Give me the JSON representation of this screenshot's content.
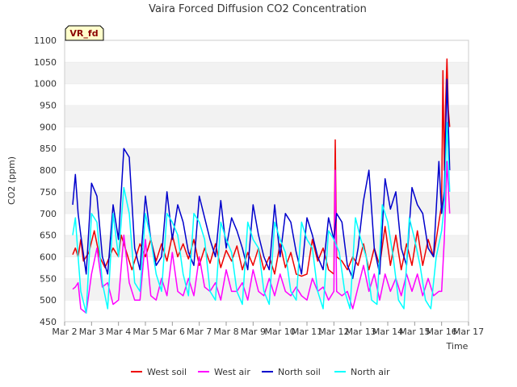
{
  "chart_data": {
    "type": "line",
    "title": "Vaira Forced Diffusion CO2 Concentration",
    "badge": "VR_fd",
    "xlabel": "Time",
    "ylabel": "CO2 (ppm)",
    "ylim": [
      450,
      1100
    ],
    "yticks": [
      450,
      500,
      550,
      600,
      650,
      700,
      750,
      800,
      850,
      900,
      950,
      1000,
      1050,
      1100
    ],
    "xlim": [
      2,
      17
    ],
    "xticks": [
      {
        "v": 2,
        "label": "Mar 2"
      },
      {
        "v": 3,
        "label": "Mar 3"
      },
      {
        "v": 4,
        "label": "Mar 4"
      },
      {
        "v": 5,
        "label": "Mar 5"
      },
      {
        "v": 6,
        "label": "Mar 6"
      },
      {
        "v": 7,
        "label": "Mar 7"
      },
      {
        "v": 8,
        "label": "Mar 8"
      },
      {
        "v": 9,
        "label": "Mar 9"
      },
      {
        "v": 10,
        "label": "Mar 10"
      },
      {
        "v": 11,
        "label": "Mar 11"
      },
      {
        "v": 12,
        "label": "Mar 12"
      },
      {
        "v": 13,
        "label": "Mar 13"
      },
      {
        "v": 14,
        "label": "Mar 14"
      },
      {
        "v": 15,
        "label": "Mar 15"
      },
      {
        "v": 16,
        "label": "Mar 16"
      },
      {
        "v": 17,
        "label": "Mar 17"
      }
    ],
    "grid": "horizontal bands",
    "legend": "bottom",
    "series": [
      {
        "name": "West soil",
        "color": "#ee0000",
        "x": [
          2.3,
          2.4,
          2.5,
          2.6,
          2.7,
          2.9,
          3.1,
          3.3,
          3.5,
          3.8,
          4.0,
          4.1,
          4.3,
          4.5,
          4.8,
          5.0,
          5.2,
          5.4,
          5.6,
          5.8,
          6.0,
          6.2,
          6.4,
          6.6,
          6.8,
          7.0,
          7.2,
          7.4,
          7.6,
          7.8,
          8.0,
          8.2,
          8.4,
          8.6,
          8.8,
          9.0,
          9.2,
          9.4,
          9.6,
          9.8,
          10.0,
          10.2,
          10.4,
          10.6,
          10.8,
          11.0,
          11.2,
          11.4,
          11.6,
          11.8,
          12.0,
          12.05,
          12.1,
          12.3,
          12.5,
          12.7,
          12.9,
          13.1,
          13.3,
          13.5,
          13.7,
          13.9,
          14.1,
          14.3,
          14.5,
          14.7,
          14.9,
          15.1,
          15.3,
          15.5,
          15.7,
          15.9,
          16.0,
          16.05,
          16.1,
          16.15,
          16.2,
          16.25,
          16.3
        ],
        "values": [
          605,
          620,
          600,
          640,
          590,
          610,
          660,
          600,
          575,
          620,
          600,
          650,
          610,
          570,
          630,
          600,
          640,
          590,
          630,
          590,
          650,
          600,
          630,
          595,
          640,
          580,
          620,
          585,
          630,
          575,
          615,
          590,
          625,
          570,
          610,
          580,
          620,
          570,
          600,
          560,
          630,
          575,
          610,
          560,
          555,
          560,
          640,
          590,
          620,
          570,
          560,
          870,
          600,
          590,
          570,
          600,
          580,
          630,
          570,
          620,
          580,
          670,
          580,
          650,
          570,
          630,
          580,
          660,
          580,
          640,
          600,
          680,
          720,
          1030,
          800,
          960,
          1057,
          940,
          900
        ]
      },
      {
        "name": "West air",
        "color": "#ff00ff",
        "x": [
          2.3,
          2.4,
          2.5,
          2.6,
          2.8,
          3.0,
          3.2,
          3.4,
          3.6,
          3.8,
          4.0,
          4.2,
          4.4,
          4.6,
          4.8,
          5.0,
          5.2,
          5.4,
          5.6,
          5.8,
          6.0,
          6.2,
          6.4,
          6.6,
          6.8,
          7.0,
          7.2,
          7.4,
          7.6,
          7.8,
          8.0,
          8.2,
          8.4,
          8.6,
          8.8,
          9.0,
          9.2,
          9.4,
          9.6,
          9.8,
          10.0,
          10.2,
          10.4,
          10.6,
          10.8,
          11.0,
          11.2,
          11.4,
          11.6,
          11.8,
          12.0,
          12.05,
          12.1,
          12.3,
          12.5,
          12.7,
          12.9,
          13.1,
          13.3,
          13.5,
          13.7,
          13.9,
          14.1,
          14.3,
          14.5,
          14.7,
          14.9,
          15.1,
          15.3,
          15.5,
          15.7,
          15.9,
          16.0,
          16.1,
          16.2,
          16.3
        ],
        "values": [
          525,
          530,
          540,
          480,
          470,
          560,
          620,
          530,
          540,
          490,
          500,
          650,
          540,
          500,
          500,
          640,
          510,
          500,
          550,
          510,
          610,
          520,
          510,
          550,
          510,
          600,
          530,
          520,
          540,
          500,
          570,
          520,
          520,
          540,
          500,
          570,
          520,
          510,
          550,
          510,
          560,
          520,
          510,
          530,
          510,
          500,
          550,
          520,
          530,
          500,
          520,
          800,
          520,
          510,
          520,
          480,
          530,
          580,
          520,
          560,
          500,
          560,
          520,
          550,
          510,
          560,
          520,
          560,
          510,
          550,
          510,
          520,
          520,
          640,
          820,
          700
        ]
      },
      {
        "name": "North soil",
        "color": "#0000cc",
        "x": [
          2.3,
          2.4,
          2.5,
          2.6,
          2.8,
          3.0,
          3.2,
          3.4,
          3.6,
          3.8,
          4.0,
          4.2,
          4.4,
          4.6,
          4.8,
          5.0,
          5.2,
          5.4,
          5.6,
          5.8,
          6.0,
          6.2,
          6.4,
          6.6,
          6.8,
          7.0,
          7.2,
          7.4,
          7.6,
          7.8,
          8.0,
          8.2,
          8.4,
          8.6,
          8.8,
          9.0,
          9.2,
          9.4,
          9.6,
          9.8,
          10.0,
          10.2,
          10.4,
          10.6,
          10.8,
          11.0,
          11.2,
          11.4,
          11.6,
          11.8,
          12.0,
          12.1,
          12.3,
          12.5,
          12.7,
          12.9,
          13.1,
          13.3,
          13.5,
          13.7,
          13.9,
          14.1,
          14.3,
          14.5,
          14.7,
          14.9,
          15.1,
          15.3,
          15.5,
          15.7,
          15.9,
          16.0,
          16.1,
          16.2,
          16.3
        ],
        "values": [
          720,
          790,
          700,
          650,
          560,
          770,
          740,
          600,
          560,
          720,
          640,
          850,
          830,
          620,
          570,
          740,
          640,
          580,
          600,
          750,
          640,
          720,
          680,
          610,
          580,
          740,
          690,
          640,
          600,
          730,
          620,
          690,
          660,
          620,
          570,
          720,
          650,
          600,
          570,
          720,
          600,
          700,
          680,
          610,
          560,
          690,
          650,
          600,
          570,
          690,
          640,
          700,
          680,
          580,
          550,
          620,
          730,
          800,
          620,
          560,
          780,
          710,
          750,
          620,
          580,
          760,
          720,
          700,
          620,
          600,
          820,
          700,
          750,
          1010,
          800
        ]
      },
      {
        "name": "North air",
        "color": "#00ffff",
        "x": [
          2.3,
          2.4,
          2.5,
          2.6,
          2.8,
          3.0,
          3.2,
          3.4,
          3.6,
          3.8,
          4.0,
          4.2,
          4.4,
          4.6,
          4.8,
          5.0,
          5.2,
          5.4,
          5.6,
          5.8,
          6.0,
          6.2,
          6.4,
          6.6,
          6.8,
          7.0,
          7.2,
          7.4,
          7.6,
          7.8,
          8.0,
          8.2,
          8.4,
          8.6,
          8.8,
          9.0,
          9.2,
          9.4,
          9.6,
          9.8,
          10.0,
          10.2,
          10.4,
          10.6,
          10.8,
          11.0,
          11.2,
          11.4,
          11.6,
          11.8,
          12.0,
          12.2,
          12.4,
          12.6,
          12.8,
          13.0,
          13.2,
          13.4,
          13.6,
          13.8,
          14.0,
          14.2,
          14.4,
          14.6,
          14.8,
          15.0,
          15.2,
          15.4,
          15.6,
          15.8,
          16.0,
          16.1,
          16.2,
          16.3
        ],
        "values": [
          650,
          690,
          600,
          520,
          470,
          700,
          680,
          540,
          480,
          700,
          600,
          760,
          700,
          540,
          520,
          700,
          640,
          560,
          520,
          700,
          680,
          650,
          560,
          510,
          700,
          680,
          640,
          520,
          500,
          680,
          640,
          610,
          520,
          490,
          680,
          640,
          620,
          520,
          490,
          680,
          640,
          610,
          520,
          500,
          680,
          640,
          620,
          520,
          480,
          660,
          640,
          610,
          520,
          480,
          690,
          640,
          600,
          500,
          490,
          720,
          680,
          600,
          500,
          480,
          690,
          640,
          580,
          500,
          480,
          600,
          660,
          720,
          910,
          750
        ]
      }
    ]
  }
}
